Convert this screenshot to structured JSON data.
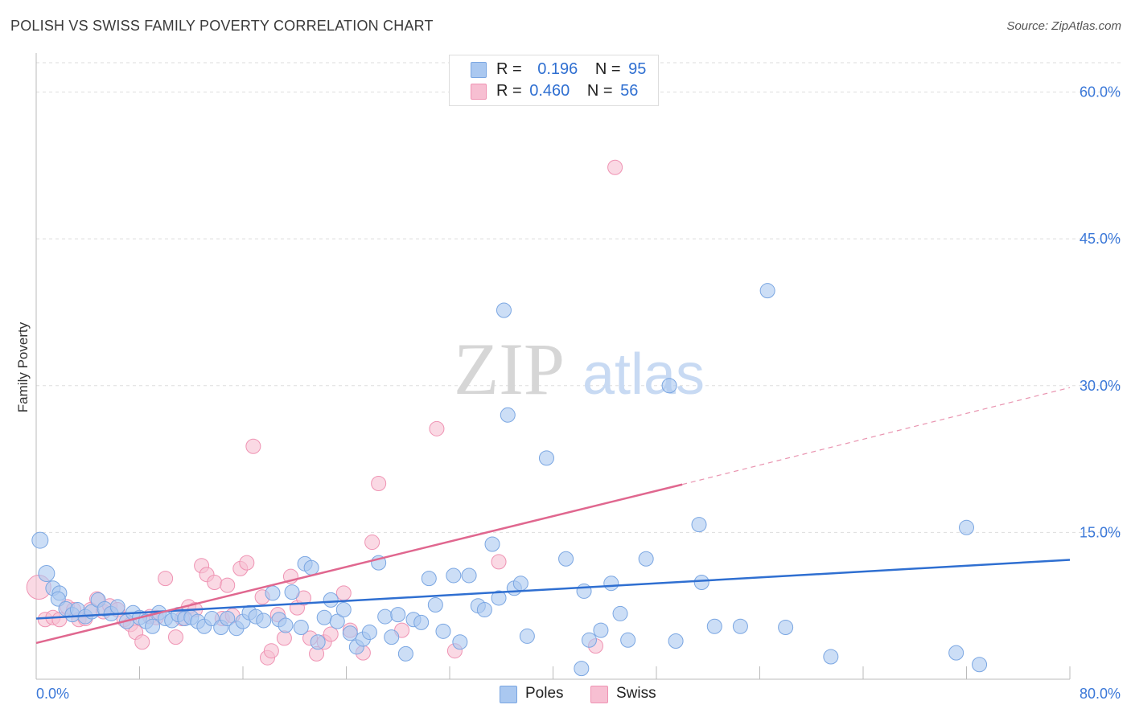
{
  "header": {
    "title": "POLISH VS SWISS FAMILY POVERTY CORRELATION CHART",
    "source": "Source: ZipAtlas.com"
  },
  "watermark": {
    "zip": "ZIP",
    "atlas": "atlas"
  },
  "legend": {
    "rows": [
      {
        "r_label": "R =",
        "r_value": "0.196",
        "n_label": "N =",
        "n_value": "95"
      },
      {
        "r_label": "R =",
        "r_value": "0.460",
        "n_label": "N =",
        "n_value": "56"
      }
    ]
  },
  "colors": {
    "poles_fill": "#aac8f0",
    "poles_stroke": "#7aa6e2",
    "poles_line": "#2f6fd1",
    "swiss_fill": "#f7bfd2",
    "swiss_stroke": "#ef93b3",
    "swiss_line": "#e0678f",
    "tick_label": "#3b78d8",
    "grid": "#dddddd",
    "axis_label": "#333333"
  },
  "chart_data": {
    "type": "scatter",
    "title": "POLISH VS SWISS FAMILY POVERTY CORRELATION CHART",
    "xlabel": "",
    "ylabel": "Family Poverty",
    "xlim": [
      0,
      80
    ],
    "ylim": [
      0,
      63
    ],
    "x_tick_labels": [
      "0.0%",
      "80.0%"
    ],
    "y_ticks": [
      15,
      30,
      45,
      60
    ],
    "y_tick_labels": [
      "15.0%",
      "30.0%",
      "45.0%",
      "60.0%"
    ],
    "grid": true,
    "legend_position": "top-center",
    "series": [
      {
        "name": "Poles",
        "r": 0.196,
        "n": 95,
        "trend": {
          "x": [
            0,
            80
          ],
          "y": [
            6.2,
            12.2
          ],
          "dashed_to": null
        },
        "points": [
          [
            0.3,
            14.2
          ],
          [
            0.8,
            10.8
          ],
          [
            1.3,
            9.3
          ],
          [
            1.8,
            8.8
          ],
          [
            1.7,
            8.2
          ],
          [
            2.3,
            7.2
          ],
          [
            2.8,
            6.6
          ],
          [
            3.2,
            7.1
          ],
          [
            3.8,
            6.4
          ],
          [
            4.3,
            6.9
          ],
          [
            4.8,
            8.1
          ],
          [
            5.3,
            7.2
          ],
          [
            5.8,
            6.7
          ],
          [
            6.3,
            7.4
          ],
          [
            7.0,
            5.9
          ],
          [
            7.5,
            6.8
          ],
          [
            8.0,
            6.3
          ],
          [
            8.5,
            5.9
          ],
          [
            9.0,
            5.4
          ],
          [
            9.5,
            6.8
          ],
          [
            10.0,
            6.2
          ],
          [
            10.5,
            6.0
          ],
          [
            11.0,
            6.6
          ],
          [
            11.5,
            6.2
          ],
          [
            12.0,
            6.3
          ],
          [
            12.5,
            5.9
          ],
          [
            13.0,
            5.4
          ],
          [
            13.6,
            6.2
          ],
          [
            14.3,
            5.3
          ],
          [
            14.8,
            6.2
          ],
          [
            15.5,
            5.2
          ],
          [
            16.0,
            5.9
          ],
          [
            16.5,
            6.8
          ],
          [
            17.0,
            6.4
          ],
          [
            17.6,
            6.0
          ],
          [
            18.3,
            8.8
          ],
          [
            18.8,
            6.1
          ],
          [
            19.3,
            5.5
          ],
          [
            19.8,
            8.9
          ],
          [
            20.5,
            5.3
          ],
          [
            20.8,
            11.8
          ],
          [
            21.3,
            11.4
          ],
          [
            21.8,
            3.8
          ],
          [
            22.3,
            6.3
          ],
          [
            22.8,
            8.1
          ],
          [
            23.3,
            5.9
          ],
          [
            23.8,
            7.1
          ],
          [
            24.3,
            4.7
          ],
          [
            24.8,
            3.3
          ],
          [
            25.3,
            4.1
          ],
          [
            25.8,
            4.8
          ],
          [
            26.5,
            11.9
          ],
          [
            27.0,
            6.4
          ],
          [
            27.5,
            4.3
          ],
          [
            28.0,
            6.6
          ],
          [
            28.6,
            2.6
          ],
          [
            29.2,
            6.1
          ],
          [
            29.8,
            5.8
          ],
          [
            30.4,
            10.3
          ],
          [
            30.9,
            7.6
          ],
          [
            31.5,
            4.9
          ],
          [
            32.3,
            10.6
          ],
          [
            32.8,
            3.8
          ],
          [
            33.5,
            10.6
          ],
          [
            34.2,
            7.5
          ],
          [
            34.7,
            7.1
          ],
          [
            35.3,
            13.8
          ],
          [
            35.8,
            8.3
          ],
          [
            36.2,
            37.7
          ],
          [
            36.5,
            27.0
          ],
          [
            37.0,
            9.3
          ],
          [
            37.5,
            9.8
          ],
          [
            38.0,
            4.4
          ],
          [
            39.5,
            22.6
          ],
          [
            41.0,
            12.3
          ],
          [
            42.2,
            1.1
          ],
          [
            42.4,
            9.0
          ],
          [
            42.8,
            4.0
          ],
          [
            43.7,
            5.0
          ],
          [
            44.5,
            9.8
          ],
          [
            45.2,
            6.7
          ],
          [
            45.8,
            4.0
          ],
          [
            47.2,
            12.3
          ],
          [
            49.0,
            30.0
          ],
          [
            49.5,
            3.9
          ],
          [
            51.3,
            15.8
          ],
          [
            51.5,
            9.9
          ],
          [
            52.5,
            5.4
          ],
          [
            54.5,
            5.4
          ],
          [
            56.6,
            39.7
          ],
          [
            58.0,
            5.3
          ],
          [
            61.5,
            2.3
          ],
          [
            71.2,
            2.7
          ],
          [
            72.0,
            15.5
          ],
          [
            73.0,
            1.5
          ]
        ]
      },
      {
        "name": "Swiss",
        "r": 0.46,
        "n": 56,
        "trend": {
          "x": [
            0,
            50
          ],
          "y": [
            3.7,
            19.9
          ],
          "dashed_to": [
            80,
            29.8
          ]
        },
        "points": [
          [
            0.2,
            9.4
          ],
          [
            0.7,
            6.1
          ],
          [
            1.3,
            6.3
          ],
          [
            1.8,
            6.1
          ],
          [
            2.4,
            7.4
          ],
          [
            2.9,
            7.1
          ],
          [
            3.3,
            6.1
          ],
          [
            3.8,
            6.2
          ],
          [
            4.2,
            7.1
          ],
          [
            4.7,
            8.2
          ],
          [
            5.2,
            6.9
          ],
          [
            5.7,
            7.5
          ],
          [
            6.3,
            7.1
          ],
          [
            6.8,
            6.1
          ],
          [
            7.3,
            5.6
          ],
          [
            7.7,
            4.8
          ],
          [
            8.2,
            3.8
          ],
          [
            8.8,
            6.4
          ],
          [
            9.3,
            6.3
          ],
          [
            10.0,
            10.3
          ],
          [
            10.8,
            4.3
          ],
          [
            11.3,
            6.2
          ],
          [
            11.8,
            7.4
          ],
          [
            12.3,
            7.1
          ],
          [
            12.8,
            11.6
          ],
          [
            13.2,
            10.7
          ],
          [
            13.8,
            9.9
          ],
          [
            14.4,
            6.2
          ],
          [
            14.8,
            9.6
          ],
          [
            15.2,
            6.5
          ],
          [
            15.8,
            11.3
          ],
          [
            16.3,
            11.9
          ],
          [
            16.8,
            23.8
          ],
          [
            17.5,
            8.4
          ],
          [
            17.9,
            2.2
          ],
          [
            18.2,
            2.9
          ],
          [
            18.7,
            6.6
          ],
          [
            19.2,
            4.2
          ],
          [
            19.7,
            10.5
          ],
          [
            20.2,
            7.3
          ],
          [
            20.7,
            8.3
          ],
          [
            21.2,
            4.2
          ],
          [
            21.7,
            2.6
          ],
          [
            22.3,
            3.8
          ],
          [
            22.8,
            4.6
          ],
          [
            23.8,
            8.8
          ],
          [
            24.3,
            5.0
          ],
          [
            25.3,
            2.7
          ],
          [
            26.0,
            14.0
          ],
          [
            26.5,
            20.0
          ],
          [
            28.3,
            5.0
          ],
          [
            31.0,
            25.6
          ],
          [
            32.4,
            2.9
          ],
          [
            35.8,
            12.0
          ],
          [
            43.3,
            3.4
          ],
          [
            44.8,
            52.3
          ]
        ]
      }
    ]
  },
  "bottom_legend": {
    "poles": "Poles",
    "swiss": "Swiss"
  }
}
